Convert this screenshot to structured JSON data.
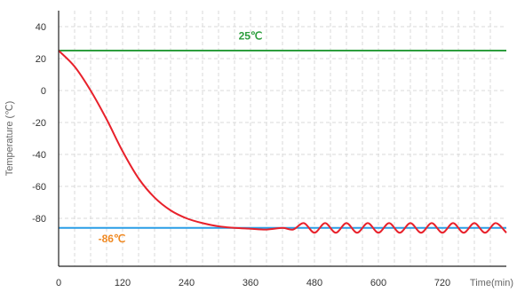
{
  "chart_data": {
    "type": "line",
    "xlabel": "Time(min)",
    "ylabel": "Temperature (℃)",
    "x_ticks": [
      0,
      120,
      240,
      360,
      480,
      600,
      720
    ],
    "y_ticks": [
      40,
      20,
      0,
      -20,
      -40,
      -60,
      -80
    ],
    "xlim": [
      0,
      840
    ],
    "ylim": [
      -110,
      50
    ],
    "grid": true,
    "series": [
      {
        "color": "#2e9e3e",
        "x": [
          0,
          840
        ],
        "y": [
          25,
          25
        ]
      },
      {
        "color": "#2a9ee6",
        "x": [
          0,
          840
        ],
        "y": [
          -86,
          -86
        ]
      },
      {
        "color": "#e8212b",
        "x": [
          0,
          30,
          60,
          90,
          120,
          150,
          180,
          210,
          240,
          270,
          300,
          330,
          360,
          390,
          420,
          440,
          460,
          480,
          500,
          520,
          540,
          560,
          580,
          600,
          620,
          640,
          660,
          680,
          700,
          720,
          740,
          760,
          780,
          800,
          820,
          840
        ],
        "y": [
          25,
          15,
          0,
          -18,
          -38,
          -55,
          -67,
          -75,
          -80,
          -83,
          -85,
          -86,
          -86.5,
          -87,
          -86,
          -87,
          -83,
          -89,
          -83,
          -89,
          -83,
          -89,
          -83,
          -89,
          -83,
          -89,
          -83,
          -89,
          -83,
          -89,
          -83,
          -89,
          -83,
          -89,
          -83,
          -89
        ]
      }
    ],
    "annotations": [
      {
        "text": "25℃",
        "x": 360,
        "y": 32,
        "color": "#2e9e3e"
      },
      {
        "text": "-86℃",
        "x": 100,
        "y": -95,
        "color": "#f08a24"
      }
    ]
  }
}
